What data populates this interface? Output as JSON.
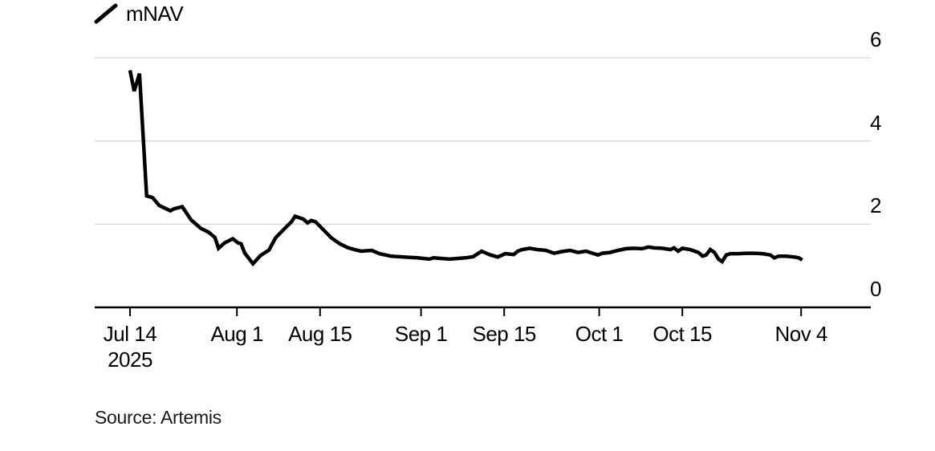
{
  "colors": {
    "background": "#ffffff",
    "line": "#000000",
    "grid": "#d8d8d8",
    "axis": "#000000",
    "tick": "#000000",
    "text": "#000000"
  },
  "chart_data": {
    "type": "line",
    "title": "",
    "legend": {
      "label": "mNAV",
      "position": "top-left",
      "swatch": "diagonal-line-icon"
    },
    "source": "Source: Artemis",
    "grid": "horizontal-only",
    "ylim": [
      0,
      6
    ],
    "y_ticks": [
      6,
      4,
      2,
      0
    ],
    "y_tick_side": "right",
    "x_unit": "days since 2025-07-14",
    "xlim_days": [
      -6,
      125
    ],
    "x_ticks": [
      {
        "day": 0,
        "label": "Jul 14",
        "sublabel": "2025"
      },
      {
        "day": 18,
        "label": "Aug 1"
      },
      {
        "day": 32,
        "label": "Aug 15"
      },
      {
        "day": 49,
        "label": "Sep 1"
      },
      {
        "day": 63,
        "label": "Sep 15"
      },
      {
        "day": 79,
        "label": "Oct 1"
      },
      {
        "day": 93,
        "label": "Oct 15"
      },
      {
        "day": 113,
        "label": "Nov 4"
      }
    ],
    "series": [
      {
        "name": "mNAV",
        "color": "#000000",
        "points": [
          [
            0,
            5.7
          ],
          [
            0.7,
            5.2
          ],
          [
            1.6,
            5.62
          ],
          [
            2.8,
            2.68
          ],
          [
            3.8,
            2.64
          ],
          [
            4.9,
            2.45
          ],
          [
            6.8,
            2.32
          ],
          [
            7.4,
            2.37
          ],
          [
            8.8,
            2.42
          ],
          [
            10.3,
            2.1
          ],
          [
            11.9,
            1.9
          ],
          [
            13.2,
            1.81
          ],
          [
            14.3,
            1.68
          ],
          [
            14.9,
            1.42
          ],
          [
            15.9,
            1.55
          ],
          [
            17.3,
            1.65
          ],
          [
            18.2,
            1.55
          ],
          [
            18.7,
            1.53
          ],
          [
            19.3,
            1.31
          ],
          [
            20.7,
            1.05
          ],
          [
            22,
            1.25
          ],
          [
            23.4,
            1.38
          ],
          [
            24.5,
            1.67
          ],
          [
            25.8,
            1.86
          ],
          [
            27.2,
            2.06
          ],
          [
            27.8,
            2.19
          ],
          [
            29.2,
            2.12
          ],
          [
            29.9,
            2.03
          ],
          [
            30.5,
            2.09
          ],
          [
            31.2,
            2.06
          ],
          [
            32.6,
            1.86
          ],
          [
            33.9,
            1.67
          ],
          [
            35.3,
            1.53
          ],
          [
            36.6,
            1.44
          ],
          [
            38,
            1.38
          ],
          [
            38.9,
            1.35
          ],
          [
            40.7,
            1.37
          ],
          [
            42,
            1.29
          ],
          [
            43.9,
            1.23
          ],
          [
            46.1,
            1.21
          ],
          [
            48.4,
            1.19
          ],
          [
            50.4,
            1.16
          ],
          [
            51.1,
            1.19
          ],
          [
            53.8,
            1.16
          ],
          [
            56.5,
            1.19
          ],
          [
            57.8,
            1.22
          ],
          [
            59.2,
            1.35
          ],
          [
            60.5,
            1.27
          ],
          [
            61.9,
            1.21
          ],
          [
            63.2,
            1.29
          ],
          [
            64.6,
            1.27
          ],
          [
            65.3,
            1.35
          ],
          [
            66,
            1.39
          ],
          [
            67.3,
            1.42
          ],
          [
            68.6,
            1.39
          ],
          [
            70,
            1.37
          ],
          [
            71.4,
            1.3
          ],
          [
            72.7,
            1.34
          ],
          [
            74.1,
            1.37
          ],
          [
            75.4,
            1.32
          ],
          [
            76.8,
            1.35
          ],
          [
            78.1,
            1.29
          ],
          [
            78.8,
            1.26
          ],
          [
            79.5,
            1.3
          ],
          [
            80.8,
            1.32
          ],
          [
            82.2,
            1.37
          ],
          [
            83.5,
            1.41
          ],
          [
            84.9,
            1.42
          ],
          [
            86.2,
            1.41
          ],
          [
            87.3,
            1.45
          ],
          [
            88.2,
            1.43
          ],
          [
            89.6,
            1.42
          ],
          [
            91,
            1.39
          ],
          [
            91.6,
            1.43
          ],
          [
            92.3,
            1.35
          ],
          [
            93,
            1.42
          ],
          [
            94.3,
            1.39
          ],
          [
            95.7,
            1.32
          ],
          [
            96.4,
            1.23
          ],
          [
            97,
            1.26
          ],
          [
            97.7,
            1.39
          ],
          [
            98.4,
            1.32
          ],
          [
            99.1,
            1.16
          ],
          [
            99.7,
            1.1
          ],
          [
            100.4,
            1.26
          ],
          [
            101.1,
            1.29
          ],
          [
            102.4,
            1.29
          ],
          [
            103.8,
            1.3
          ],
          [
            105.1,
            1.3
          ],
          [
            106.5,
            1.29
          ],
          [
            107.8,
            1.26
          ],
          [
            108.5,
            1.19
          ],
          [
            109.2,
            1.23
          ],
          [
            110.5,
            1.23
          ],
          [
            111.9,
            1.21
          ],
          [
            112.6,
            1.19
          ],
          [
            113.2,
            1.14
          ]
        ]
      }
    ]
  }
}
